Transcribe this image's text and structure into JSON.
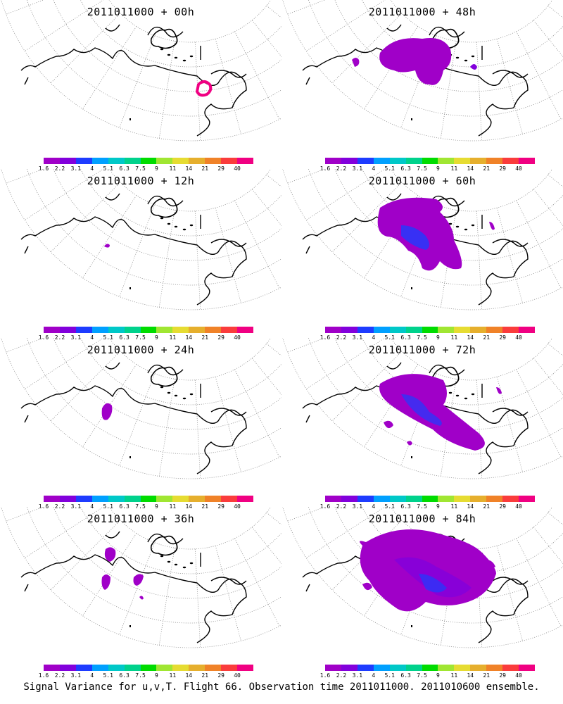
{
  "footer": "Signal Variance for u,v,T. Flight 66. Observation time 2011011000. 2011010600 ensemble.",
  "colorbar": {
    "labels": [
      "1.6",
      "2.2",
      "3.1",
      "4",
      "5.1",
      "6.3",
      "7.5",
      "9",
      "11",
      "14",
      "21",
      "29",
      "40"
    ],
    "colors": [
      "#a000c8",
      "#8200dc",
      "#1e3cff",
      "#00a0ff",
      "#00c8c8",
      "#00d28c",
      "#00dc00",
      "#a0e632",
      "#e6dc32",
      "#e6af2d",
      "#f08228",
      "#fa3c3c",
      "#f00082"
    ]
  },
  "chart_data": [
    {
      "type": "heatmap",
      "title": "2011011000 + 00h",
      "colorbar_levels": [
        1.6,
        2.2,
        3.1,
        4,
        5.1,
        6.3,
        7.5,
        9,
        11,
        14,
        21,
        29,
        40
      ]
    },
    {
      "type": "heatmap",
      "title": "2011011000 + 48h",
      "colorbar_levels": [
        1.6,
        2.2,
        3.1,
        4,
        5.1,
        6.3,
        7.5,
        9,
        11,
        14,
        21,
        29,
        40
      ]
    },
    {
      "type": "heatmap",
      "title": "2011011000 + 12h",
      "colorbar_levels": [
        1.6,
        2.2,
        3.1,
        4,
        5.1,
        6.3,
        7.5,
        9,
        11,
        14,
        21,
        29,
        40
      ]
    },
    {
      "type": "heatmap",
      "title": "2011011000 + 60h",
      "colorbar_levels": [
        1.6,
        2.2,
        3.1,
        4,
        5.1,
        6.3,
        7.5,
        9,
        11,
        14,
        21,
        29,
        40
      ]
    },
    {
      "type": "heatmap",
      "title": "2011011000 + 24h",
      "colorbar_levels": [
        1.6,
        2.2,
        3.1,
        4,
        5.1,
        6.3,
        7.5,
        9,
        11,
        14,
        21,
        29,
        40
      ]
    },
    {
      "type": "heatmap",
      "title": "2011011000 + 72h",
      "colorbar_levels": [
        1.6,
        2.2,
        3.1,
        4,
        5.1,
        6.3,
        7.5,
        9,
        11,
        14,
        21,
        29,
        40
      ]
    },
    {
      "type": "heatmap",
      "title": "2011011000 + 36h",
      "colorbar_levels": [
        1.6,
        2.2,
        3.1,
        4,
        5.1,
        6.3,
        7.5,
        9,
        11,
        14,
        21,
        29,
        40
      ]
    },
    {
      "type": "heatmap",
      "title": "2011011000 + 84h",
      "colorbar_levels": [
        1.6,
        2.2,
        3.1,
        4,
        5.1,
        6.3,
        7.5,
        9,
        11,
        14,
        21,
        29,
        40
      ]
    }
  ]
}
